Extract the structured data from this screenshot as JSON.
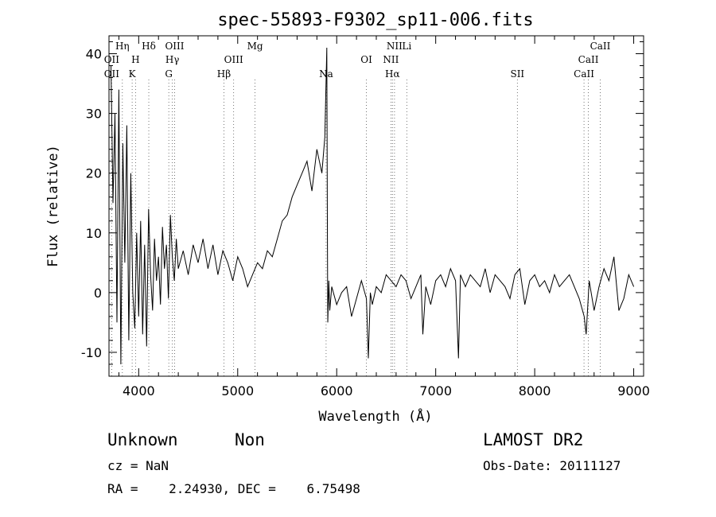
{
  "chart_data": {
    "type": "line",
    "title": "spec-55893-F9302_sp11-006.fits",
    "xlabel": "Wavelength (Å)",
    "ylabel": "Flux (relative)",
    "xlim": [
      3700,
      9100
    ],
    "ylim": [
      -14,
      43
    ],
    "xticks": [
      4000,
      5000,
      6000,
      7000,
      8000,
      9000
    ],
    "yticks": [
      -10,
      0,
      10,
      20,
      30,
      40
    ],
    "grid": false,
    "spectrum": {
      "x": [
        3720,
        3740,
        3760,
        3780,
        3800,
        3820,
        3840,
        3860,
        3880,
        3900,
        3920,
        3940,
        3960,
        3980,
        4000,
        4020,
        4040,
        4060,
        4080,
        4100,
        4120,
        4140,
        4160,
        4180,
        4200,
        4220,
        4240,
        4260,
        4280,
        4300,
        4320,
        4340,
        4360,
        4380,
        4400,
        4450,
        4500,
        4550,
        4600,
        4650,
        4700,
        4750,
        4800,
        4850,
        4900,
        4950,
        5000,
        5050,
        5100,
        5150,
        5200,
        5250,
        5300,
        5350,
        5400,
        5450,
        5500,
        5550,
        5600,
        5650,
        5700,
        5750,
        5800,
        5850,
        5880,
        5900,
        5905,
        5910,
        5915,
        5920,
        5930,
        5950,
        6000,
        6050,
        6100,
        6150,
        6200,
        6250,
        6300,
        6320,
        6340,
        6360,
        6400,
        6450,
        6500,
        6550,
        6600,
        6650,
        6700,
        6750,
        6800,
        6850,
        6870,
        6900,
        6950,
        7000,
        7050,
        7100,
        7150,
        7200,
        7230,
        7250,
        7300,
        7350,
        7400,
        7450,
        7500,
        7550,
        7600,
        7650,
        7700,
        7750,
        7800,
        7850,
        7900,
        7950,
        8000,
        8050,
        8100,
        8150,
        8200,
        8250,
        8300,
        8350,
        8400,
        8450,
        8500,
        8520,
        8550,
        8600,
        8650,
        8700,
        8750,
        8800,
        8850,
        8900,
        8950,
        9000
      ],
      "y": [
        38,
        15,
        30,
        -5,
        34,
        -12,
        25,
        5,
        28,
        -8,
        20,
        0,
        -6,
        10,
        -4,
        12,
        -7,
        8,
        -9,
        14,
        3,
        -3,
        9,
        2,
        6,
        -2,
        11,
        4,
        8,
        -1,
        13,
        6,
        2,
        9,
        4,
        7,
        3,
        8,
        5,
        9,
        4,
        8,
        3,
        7,
        5,
        2,
        6,
        4,
        1,
        3,
        5,
        4,
        7,
        6,
        9,
        12,
        13,
        16,
        18,
        20,
        22,
        17,
        24,
        20,
        26,
        41,
        15,
        -5,
        -2,
        2,
        -3,
        1,
        -2,
        0,
        1,
        -4,
        -1,
        2,
        -1,
        -11,
        0,
        -2,
        1,
        0,
        3,
        2,
        1,
        3,
        2,
        -1,
        1,
        3,
        -7,
        1,
        -2,
        2,
        3,
        1,
        4,
        2,
        -11,
        3,
        1,
        3,
        2,
        1,
        4,
        0,
        3,
        2,
        1,
        -1,
        3,
        4,
        -2,
        2,
        3,
        1,
        2,
        0,
        3,
        1,
        2,
        3,
        1,
        -1,
        -4,
        -7,
        2,
        -3,
        1,
        4,
        2,
        6,
        -3,
        -1,
        3,
        1
      ]
    },
    "line_markers": [
      {
        "label": "OII",
        "wave": 3727,
        "row": 2
      },
      {
        "label": "OII",
        "wave": 3727,
        "row": 3
      },
      {
        "label": "Hη",
        "wave": 3835,
        "row": 1
      },
      {
        "label": "H",
        "wave": 3968,
        "row": 2
      },
      {
        "label": "K",
        "wave": 3934,
        "row": 3
      },
      {
        "label": "Hδ",
        "wave": 4102,
        "row": 1
      },
      {
        "label": "OIII",
        "wave": 4363,
        "row": 1
      },
      {
        "label": "Hγ",
        "wave": 4340,
        "row": 2
      },
      {
        "label": "G",
        "wave": 4304,
        "row": 3
      },
      {
        "label": "OIII",
        "wave": 4959,
        "row": 2
      },
      {
        "label": "Hβ",
        "wave": 4861,
        "row": 3
      },
      {
        "label": "Mg",
        "wave": 5175,
        "row": 1
      },
      {
        "label": "Na",
        "wave": 5893,
        "row": 3
      },
      {
        "label": "OI",
        "wave": 6300,
        "row": 2
      },
      {
        "label": "NII",
        "wave": 6584,
        "row": 1
      },
      {
        "label": "Li",
        "wave": 6708,
        "row": 1
      },
      {
        "label": "NII",
        "wave": 6548,
        "row": 2
      },
      {
        "label": "Hα",
        "wave": 6563,
        "row": 3
      },
      {
        "label": "SII",
        "wave": 7825,
        "row": 3
      },
      {
        "label": "CaII",
        "wave": 8662,
        "row": 1
      },
      {
        "label": "CaII",
        "wave": 8542,
        "row": 2
      },
      {
        "label": "CaII",
        "wave": 8498,
        "row": 3
      }
    ]
  },
  "info": {
    "class": "Unknown",
    "subclass": "Non",
    "survey": "LAMOST DR2",
    "cz": "cz = NaN",
    "obs_date": "Obs-Date: 20111127",
    "coords": "RA =    2.24930, DEC =    6.75498"
  }
}
